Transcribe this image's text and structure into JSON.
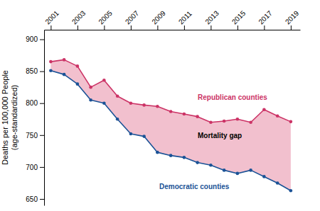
{
  "chart_data": {
    "type": "line",
    "ylabel": "Deaths per 100,000 People\n(age-standardized)",
    "x": [
      2001,
      2002,
      2003,
      2004,
      2005,
      2006,
      2007,
      2008,
      2009,
      2010,
      2011,
      2012,
      2013,
      2014,
      2015,
      2016,
      2017,
      2018,
      2019
    ],
    "series": [
      {
        "name": "Republican counties",
        "color": "#cc3366",
        "marker": "circle",
        "values": [
          865,
          868,
          858,
          825,
          836,
          811,
          800,
          797,
          795,
          787,
          783,
          779,
          770,
          772,
          775,
          770,
          790,
          780,
          771
        ]
      },
      {
        "name": "Democratic counties",
        "color": "#1a5296",
        "marker": "circle",
        "values": [
          851,
          845,
          830,
          805,
          800,
          775,
          752,
          748,
          723,
          718,
          715,
          707,
          703,
          695,
          690,
          695,
          685,
          675,
          663
        ]
      }
    ],
    "color": "#f2c0ce",
    "annotations": [
      {
        "text": "Republican counties",
        "color": "#cc3366"
      },
      {
        "text": "Mortality gap",
        "color": "black"
      },
      {
        "text": "Democratic counties",
        "color": "#1a5296"
      }
    ],
    "xlim": [
      2000.5,
      2019.7
    ],
    "xticks": [
      2001,
      2003,
      2005,
      2007,
      2009,
      2011,
      2013,
      2015,
      2017,
      2019
    ],
    "ylim": [
      640,
      915
    ],
    "yticks": [
      650,
      700,
      750,
      800,
      850,
      900
    ],
    "grid": false
  }
}
